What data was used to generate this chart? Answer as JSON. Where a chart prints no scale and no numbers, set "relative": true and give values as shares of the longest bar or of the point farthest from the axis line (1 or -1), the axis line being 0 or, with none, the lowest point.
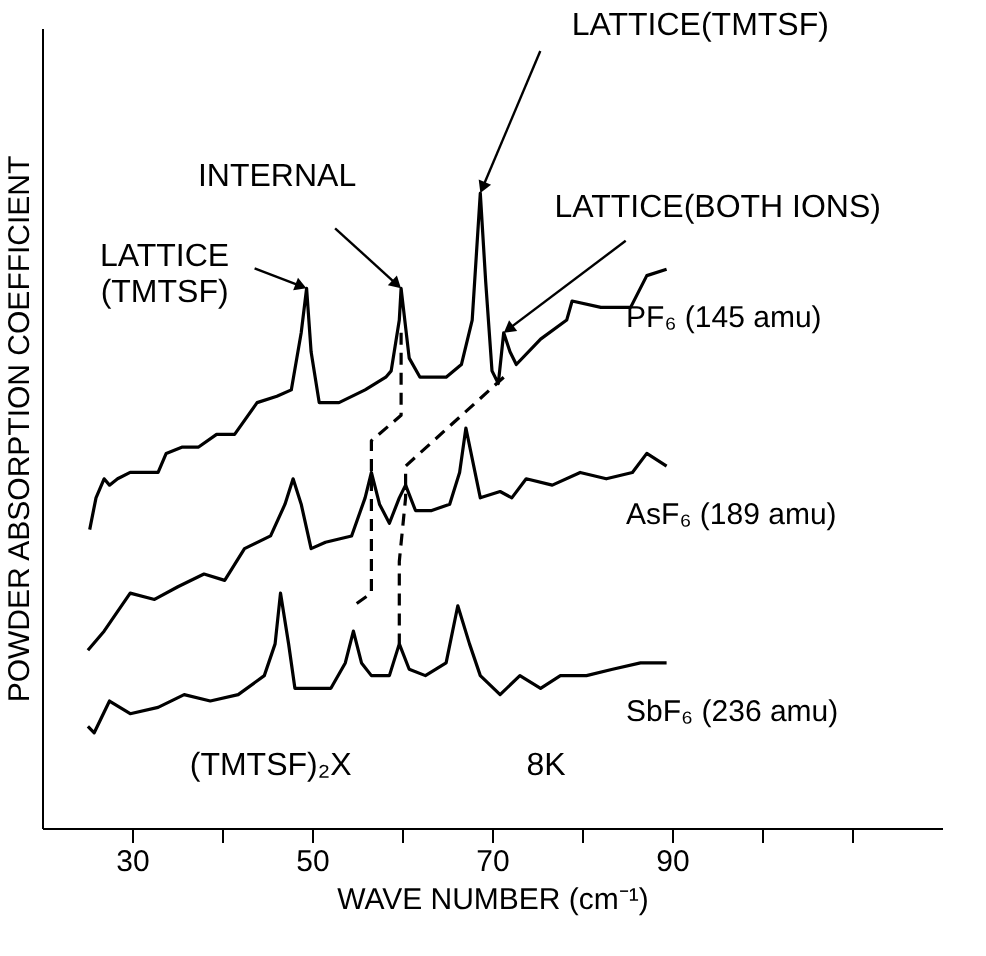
{
  "chart_data": {
    "type": "line",
    "relative": true,
    "xlabel": "WAVE NUMBER (cm⁻¹)",
    "ylabel": "POWDER ABSORPTION COEFFICIENT",
    "xlim": [
      20,
      120
    ],
    "xticks": [
      30,
      {
        "value": 40,
        "label": null
      },
      50,
      {
        "value": 60,
        "label": null
      },
      70,
      {
        "value": 80,
        "label": null
      },
      90,
      {
        "value": 100,
        "label": null
      },
      {
        "value": 110,
        "label": null
      }
    ],
    "grid": false,
    "marker": "none",
    "line_style": "solid",
    "series": [
      {
        "name": "PF₆ (145 amu)",
        "color": "#000000",
        "x": [
          25.3,
          26.0,
          26.9,
          27.5,
          28.4,
          29.8,
          31.3,
          32.9,
          33.8,
          35.6,
          37.4,
          39.4,
          41.4,
          43.9,
          46.1,
          47.7,
          48.8,
          49.4,
          49.9,
          50.8,
          53.0,
          55.9,
          58.2,
          58.8,
          59.7,
          59.9,
          60.8,
          62.0,
          64.9,
          66.6,
          67.8,
          68.7,
          69.3,
          70.0,
          70.7,
          71.3,
          72.0,
          72.7,
          75.4,
          78.3,
          78.9,
          82.1,
          85.4,
          87.2,
          89.4
        ],
        "values": [
          0.47,
          0.52,
          0.55,
          0.54,
          0.55,
          0.56,
          0.56,
          0.56,
          0.59,
          0.6,
          0.6,
          0.62,
          0.62,
          0.67,
          0.68,
          0.69,
          0.78,
          0.85,
          0.75,
          0.67,
          0.67,
          0.69,
          0.71,
          0.72,
          0.8,
          0.85,
          0.74,
          0.71,
          0.71,
          0.73,
          0.8,
          1.0,
          0.86,
          0.72,
          0.7,
          0.78,
          0.75,
          0.73,
          0.77,
          0.8,
          0.83,
          0.82,
          0.82,
          0.87,
          0.88
        ]
      },
      {
        "name": "AsF₆ (189 amu)",
        "color": "#000000",
        "x": [
          25.1,
          26.9,
          29.8,
          32.5,
          35.1,
          38.0,
          40.3,
          42.5,
          45.4,
          47.0,
          47.9,
          48.8,
          49.9,
          51.5,
          54.4,
          55.9,
          56.6,
          57.5,
          58.6,
          59.7,
          60.4,
          61.5,
          63.3,
          65.3,
          66.4,
          67.1,
          68.7,
          70.9,
          72.2,
          73.8,
          76.7,
          79.8,
          82.7,
          85.6,
          87.2,
          89.4
        ],
        "values": [
          0.28,
          0.31,
          0.37,
          0.36,
          0.38,
          0.4,
          0.39,
          0.44,
          0.46,
          0.51,
          0.55,
          0.51,
          0.44,
          0.45,
          0.46,
          0.52,
          0.56,
          0.51,
          0.48,
          0.52,
          0.54,
          0.5,
          0.5,
          0.51,
          0.56,
          0.63,
          0.52,
          0.53,
          0.52,
          0.55,
          0.54,
          0.56,
          0.55,
          0.56,
          0.59,
          0.57
        ]
      },
      {
        "name": "SbF₆ (236 amu)",
        "color": "#000000",
        "x": [
          25.1,
          25.8,
          27.5,
          29.8,
          32.9,
          35.8,
          38.7,
          41.8,
          44.7,
          45.9,
          46.5,
          47.4,
          48.1,
          49.9,
          52.1,
          53.7,
          54.6,
          55.5,
          56.6,
          58.6,
          59.7,
          60.8,
          62.6,
          64.9,
          66.2,
          67.5,
          68.7,
          70.9,
          73.1,
          75.4,
          77.6,
          80.5,
          83.4,
          86.5,
          89.4
        ],
        "values": [
          0.16,
          0.15,
          0.2,
          0.18,
          0.19,
          0.21,
          0.2,
          0.21,
          0.24,
          0.29,
          0.37,
          0.29,
          0.22,
          0.22,
          0.22,
          0.26,
          0.31,
          0.26,
          0.24,
          0.24,
          0.29,
          0.25,
          0.24,
          0.26,
          0.35,
          0.29,
          0.24,
          0.21,
          0.24,
          0.22,
          0.24,
          0.24,
          0.25,
          0.26,
          0.26
        ]
      },
      {
        "color": "#000000",
        "line_style": "dashed",
        "x": [
          59.9,
          59.9,
          56.6,
          56.6,
          54.6
        ],
        "values": [
          0.78,
          0.65,
          0.61,
          0.37,
          0.35
        ]
      },
      {
        "color": "#000000",
        "line_style": "dashed",
        "x": [
          71.3,
          60.4,
          60.4,
          59.7,
          59.7
        ],
        "values": [
          0.71,
          0.57,
          0.52,
          0.42,
          0.29
        ]
      }
    ],
    "annotations": [
      {
        "text": "LATTICE\n(TMTSF)",
        "x": 49.4,
        "y": 0.85
      },
      {
        "text": "INTERNAL",
        "x": 59.9,
        "y": 0.85
      },
      {
        "text": "LATTICE(TMTSF)",
        "x": 68.7,
        "y": 1.0
      },
      {
        "text": "LATTICE(BOTH IONS)",
        "x": 71.3,
        "y": 0.78
      },
      "(TMTSF)₂X",
      "8K"
    ]
  }
}
